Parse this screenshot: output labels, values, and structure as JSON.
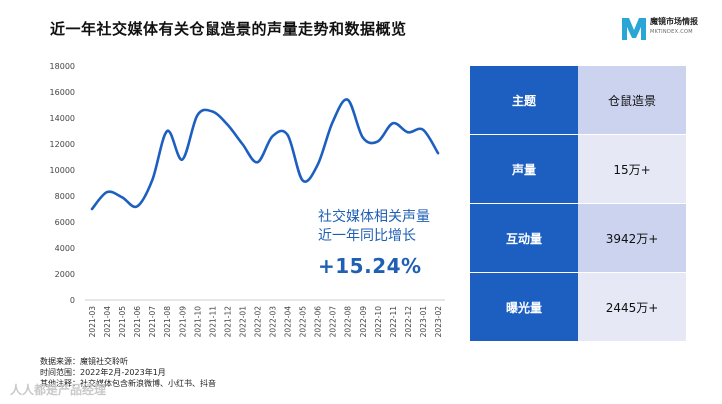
{
  "title": "近一年社交媒体有关仓鼠造景的声量走势和数据概览",
  "logo": {
    "name": "魔镜市场情报",
    "sub": "MKTINDEX.COM",
    "mark": "M"
  },
  "colors": {
    "line": "#1d5fc1",
    "accent": "#1d5fc1",
    "callout": "#1f5fb4"
  },
  "chart_data": {
    "type": "line",
    "title": "",
    "xlabel": "",
    "ylabel": "",
    "ylim": [
      0,
      18000
    ],
    "yticks": [
      0,
      2000,
      4000,
      6000,
      8000,
      10000,
      12000,
      14000,
      16000,
      18000
    ],
    "grid": false,
    "categories": [
      "2021-03",
      "2021-04",
      "2021-05",
      "2021-06",
      "2021-07",
      "2021-08",
      "2021-09",
      "2021-10",
      "2021-11",
      "2021-12",
      "2022-01",
      "2022-02",
      "2022-03",
      "2022-04",
      "2022-05",
      "2022-06",
      "2022-07",
      "2022-08",
      "2022-09",
      "2022-10",
      "2022-11",
      "2022-12",
      "2023-01",
      "2023-02"
    ],
    "series": [
      {
        "name": "声量",
        "values": [
          7000,
          8300,
          7900,
          7200,
          9200,
          13000,
          10800,
          14200,
          14500,
          13500,
          12000,
          10600,
          12600,
          12700,
          9200,
          10400,
          13700,
          15400,
          12500,
          12200,
          13600,
          12900,
          13100,
          11300
        ]
      }
    ]
  },
  "callout": {
    "line1": "社交媒体相关声量",
    "line2": "近一年同比增长",
    "growth": "+15.24%"
  },
  "stats": [
    {
      "label": "主题",
      "value": "仓鼠造景"
    },
    {
      "label": "声量",
      "value": "15万+"
    },
    {
      "label": "互动量",
      "value": "3942万+"
    },
    {
      "label": "曝光量",
      "value": "2445万+"
    }
  ],
  "footer": {
    "source": "数据来源：魔镜社交聆听",
    "range": "时间范围：2022年2月-2023年1月",
    "note": "其他注释：社交媒体包含新浪微博、小红书、抖音"
  },
  "watermark": "人人都是产品经理"
}
